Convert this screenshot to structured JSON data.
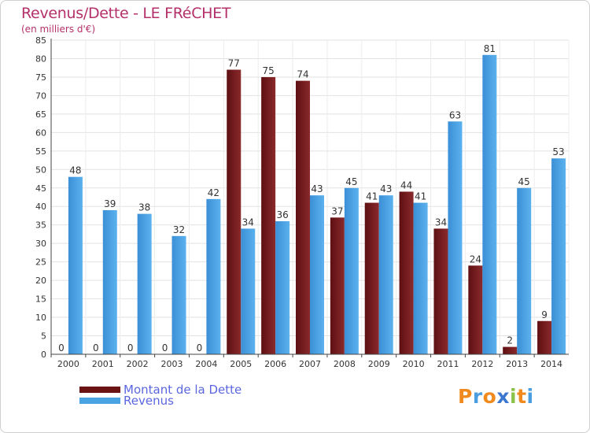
{
  "header": {
    "title": "Revenus/Dette - LE FRéCHET",
    "subtitle": "(en milliers d'€)"
  },
  "chart_data": {
    "type": "bar",
    "categories": [
      "2000",
      "2001",
      "2002",
      "2003",
      "2004",
      "2005",
      "2006",
      "2007",
      "2008",
      "2009",
      "2010",
      "2011",
      "2012",
      "2013",
      "2014"
    ],
    "series": [
      {
        "name": "Montant de la Dette",
        "color": "#7a1c1e",
        "values": [
          0,
          0,
          0,
          0,
          0,
          77,
          75,
          74,
          37,
          41,
          44,
          34,
          24,
          2,
          9
        ]
      },
      {
        "name": "Revenus",
        "color": "#4aa3e3",
        "values": [
          48,
          39,
          38,
          32,
          42,
          34,
          36,
          43,
          45,
          43,
          41,
          63,
          81,
          45,
          53
        ]
      }
    ],
    "yticks": [
      0,
      5,
      10,
      15,
      20,
      25,
      30,
      35,
      40,
      45,
      50,
      55,
      60,
      65,
      70,
      75,
      80,
      85
    ],
    "ylim": [
      0,
      85
    ],
    "grid": true,
    "legend_position": "bottom-left"
  },
  "legend": [
    {
      "label": "Montant de la Dette",
      "color": "#7a1c1e"
    },
    {
      "label": "Revenus",
      "color": "#4aa3e3"
    }
  ],
  "brand": {
    "letters": [
      "P",
      "r",
      "o",
      "x",
      "i",
      "t",
      "i"
    ],
    "colors": [
      "#f08a1c",
      "#4a9ee0",
      "#f08a1c",
      "#3c78d0",
      "#8bc34a",
      "#f08a1c",
      "#4a9ee0"
    ]
  }
}
